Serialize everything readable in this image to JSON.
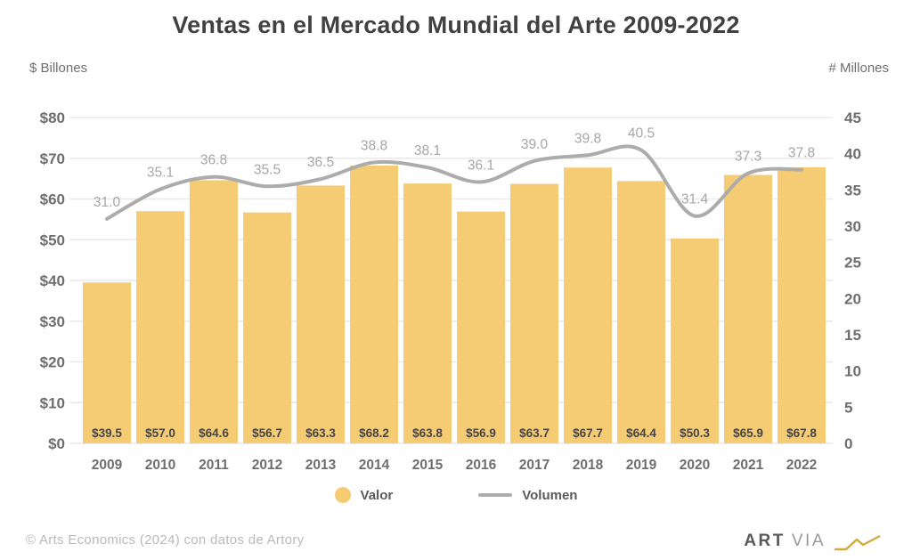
{
  "chart_data": {
    "type": "bar",
    "subtype": "combo-bar-line",
    "title": "Ventas en el Mercado Mundial del Arte 2009-2022",
    "categories": [
      "2009",
      "2010",
      "2011",
      "2012",
      "2013",
      "2014",
      "2015",
      "2016",
      "2017",
      "2018",
      "2019",
      "2020",
      "2021",
      "2022"
    ],
    "series": [
      {
        "name": "Valor",
        "type": "bar",
        "axis": "left",
        "values": [
          39.5,
          57.0,
          64.6,
          56.7,
          63.3,
          68.2,
          63.8,
          56.9,
          63.7,
          67.7,
          64.4,
          50.3,
          65.9,
          67.8
        ],
        "data_labels": [
          "$39.5",
          "$57.0",
          "$64.6",
          "$56.7",
          "$63.3",
          "$68.2",
          "$63.8",
          "$56.9",
          "$63.7",
          "$67.7",
          "$64.4",
          "$50.3",
          "$65.9",
          "$67.8"
        ]
      },
      {
        "name": "Volumen",
        "type": "line",
        "axis": "right",
        "values": [
          31.0,
          35.1,
          36.8,
          35.5,
          36.5,
          38.8,
          38.1,
          36.1,
          39.0,
          39.8,
          40.5,
          31.4,
          37.3,
          37.8
        ],
        "data_labels": [
          "31.0",
          "35.1",
          "36.8",
          "35.5",
          "36.5",
          "38.8",
          "38.1",
          "36.1",
          "39.0",
          "39.8",
          "40.5",
          "31.4",
          "37.3",
          "37.8"
        ]
      }
    ],
    "left_axis": {
      "title": "$ Billones",
      "min": 0,
      "max": 80,
      "tick_labels": [
        "$0",
        "$10",
        "$20",
        "$30",
        "$40",
        "$50",
        "$60",
        "$70",
        "$80"
      ]
    },
    "right_axis": {
      "title": "# Millones",
      "min": 0,
      "max": 45,
      "tick_labels": [
        "0",
        "5",
        "10",
        "15",
        "20",
        "25",
        "30",
        "35",
        "40",
        "45"
      ]
    },
    "grid": true,
    "legend_position": "bottom"
  },
  "colors": {
    "bar": "#F5CB74",
    "line": "#ACACAC",
    "line_label": "#A6A6A6",
    "bar_label": "#454547",
    "tick_label": "#6E6E6E",
    "grid": "#E9E9E9",
    "logo_gold": "#D2A93B"
  },
  "legend": {
    "items": [
      {
        "label": "Valor",
        "swatch": "circle"
      },
      {
        "label": "Volumen",
        "swatch": "line"
      }
    ]
  },
  "footer": {
    "copyright": "©  Arts Economics (2024) con datos de Artory",
    "logo": {
      "text_bold": "ART",
      "text_light": "VIA"
    }
  }
}
